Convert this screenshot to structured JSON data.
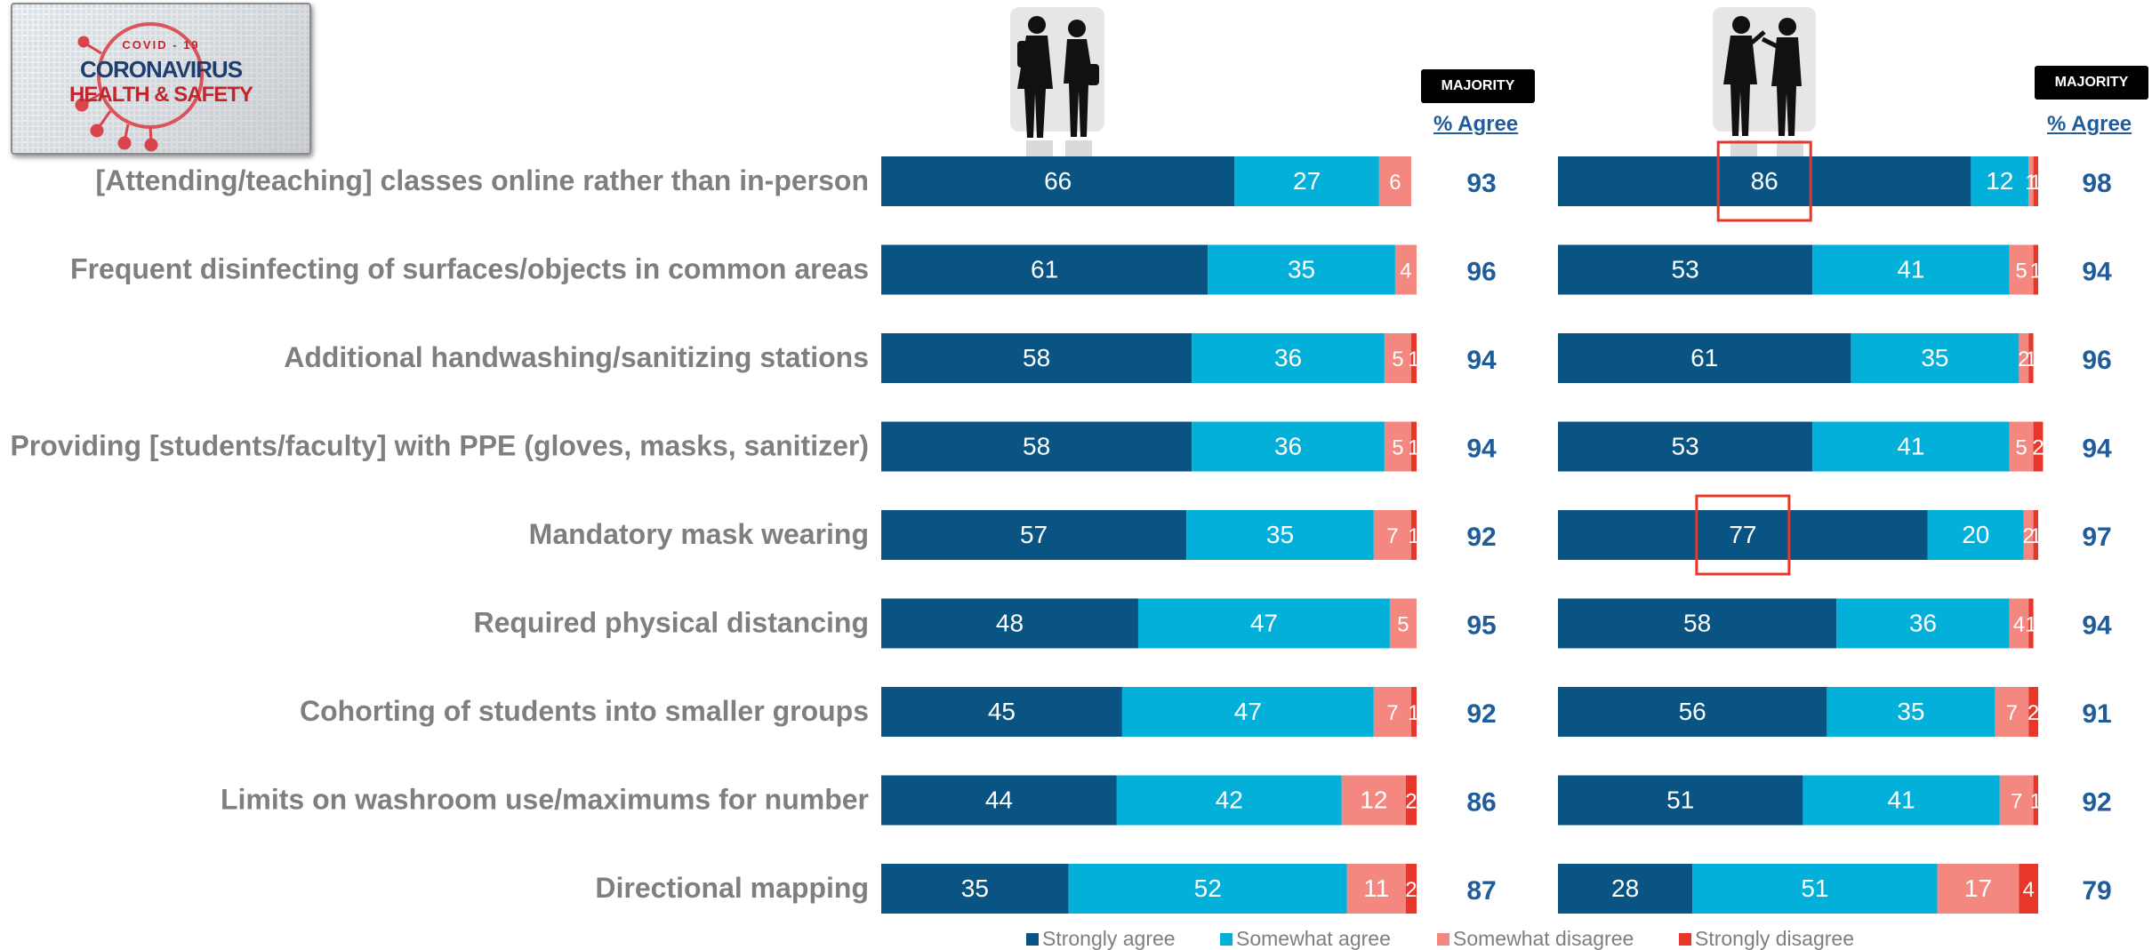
{
  "logo": {
    "line1": "COVID - 19",
    "line2": "CORONAVIRUS",
    "line3": "HEALTH & SAFETY"
  },
  "icons": {
    "group1": "students-silhouette-icon",
    "group2": "faculty-silhouette-icon"
  },
  "headers": {
    "badge": "MAJORITY",
    "agree": "% Agree"
  },
  "colors": {
    "strongly_agree": "#0a5483",
    "somewhat_agree": "#02b0d9",
    "somewhat_disagree": "#f4877f",
    "strongly_disagree": "#e8372a",
    "label": "#7f7f7f",
    "agree_total": "#1f5c99",
    "highlight_box": "#e8372a"
  },
  "chart_data": [
    {
      "type": "bar",
      "orientation": "horizontal",
      "stacked": true,
      "group_icon": "students-silhouette-icon",
      "categories": [
        "[Attending/teaching] classes online rather than in-person",
        "Frequent disinfecting of surfaces/objects in common areas",
        "Additional handwashing/sanitizing stations",
        "Providing [students/faculty] with PPE (gloves, masks, sanitizer)",
        "Mandatory mask wearing",
        "Required physical distancing",
        "Cohorting of students into smaller groups",
        "Limits on washroom use/maximums for number",
        "Directional mapping"
      ],
      "series": [
        {
          "name": "Strongly agree",
          "values": [
            66,
            61,
            58,
            58,
            57,
            48,
            45,
            44,
            35
          ]
        },
        {
          "name": "Somewhat agree",
          "values": [
            27,
            35,
            36,
            36,
            35,
            47,
            47,
            42,
            52
          ]
        },
        {
          "name": "Somewhat disagree",
          "values": [
            6,
            4,
            5,
            5,
            7,
            5,
            7,
            12,
            11
          ]
        },
        {
          "name": "Strongly disagree",
          "values": [
            0,
            0,
            1,
            1,
            1,
            0,
            1,
            2,
            2
          ]
        }
      ],
      "agree_totals": [
        93,
        96,
        94,
        94,
        92,
        95,
        92,
        86,
        87
      ],
      "xlim": [
        0,
        100
      ]
    },
    {
      "type": "bar",
      "orientation": "horizontal",
      "stacked": true,
      "group_icon": "faculty-silhouette-icon",
      "categories": [
        "[Attending/teaching] classes online rather than in-person",
        "Frequent disinfecting of surfaces/objects in common areas",
        "Additional handwashing/sanitizing stations",
        "Providing [students/faculty] with PPE (gloves, masks, sanitizer)",
        "Mandatory mask wearing",
        "Required physical distancing",
        "Cohorting of students into smaller groups",
        "Limits on washroom use/maximums for number",
        "Directional mapping"
      ],
      "series": [
        {
          "name": "Strongly agree",
          "values": [
            86,
            53,
            61,
            53,
            77,
            58,
            56,
            51,
            28
          ]
        },
        {
          "name": "Somewhat agree",
          "values": [
            12,
            41,
            35,
            41,
            20,
            36,
            35,
            41,
            51
          ]
        },
        {
          "name": "Somewhat disagree",
          "values": [
            1,
            5,
            2,
            5,
            2,
            4,
            7,
            7,
            17
          ]
        },
        {
          "name": "Strongly disagree",
          "values": [
            1,
            1,
            1,
            2,
            1,
            1,
            2,
            1,
            4
          ]
        }
      ],
      "agree_totals": [
        98,
        94,
        96,
        94,
        97,
        94,
        91,
        92,
        79
      ],
      "highlighted": [
        {
          "row": 0,
          "series": 0
        },
        {
          "row": 4,
          "series": 0
        }
      ],
      "xlim": [
        0,
        100
      ]
    }
  ]
}
